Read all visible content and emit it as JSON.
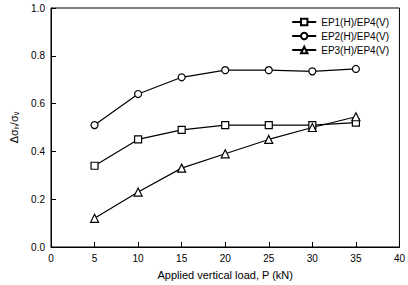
{
  "chart_data": {
    "type": "line",
    "x_label": "Applied vertical load, P (kN)",
    "y_label": "Δσₕ/σᵥ",
    "x": [
      5,
      10,
      15,
      20,
      25,
      30,
      35
    ],
    "series": [
      {
        "name": "EP1(H)/EP4(V)",
        "color": "#000000",
        "marker": "square",
        "values": [
          0.34,
          0.45,
          0.49,
          0.51,
          0.51,
          0.51,
          0.52
        ]
      },
      {
        "name": "EP2(H)/EP4(V)",
        "color": "#000000",
        "marker": "circle",
        "values": [
          0.51,
          0.64,
          0.71,
          0.74,
          0.74,
          0.735,
          0.745
        ]
      },
      {
        "name": "EP3(H)/EP4(V)",
        "color": "#000000",
        "marker": "triangle",
        "values": [
          0.12,
          0.23,
          0.33,
          0.39,
          0.45,
          0.5,
          0.545
        ]
      }
    ],
    "xlim": [
      0,
      40
    ],
    "xticks": [
      0,
      5,
      10,
      15,
      20,
      25,
      30,
      35,
      40
    ],
    "ylim": [
      0,
      1
    ],
    "yticks": [
      {
        "value": 0,
        "label": "0.0"
      },
      0.2,
      0.4,
      0.6,
      0.8,
      {
        "value": 1,
        "label": "1.0"
      }
    ],
    "grid": false,
    "legend": "upper right"
  }
}
